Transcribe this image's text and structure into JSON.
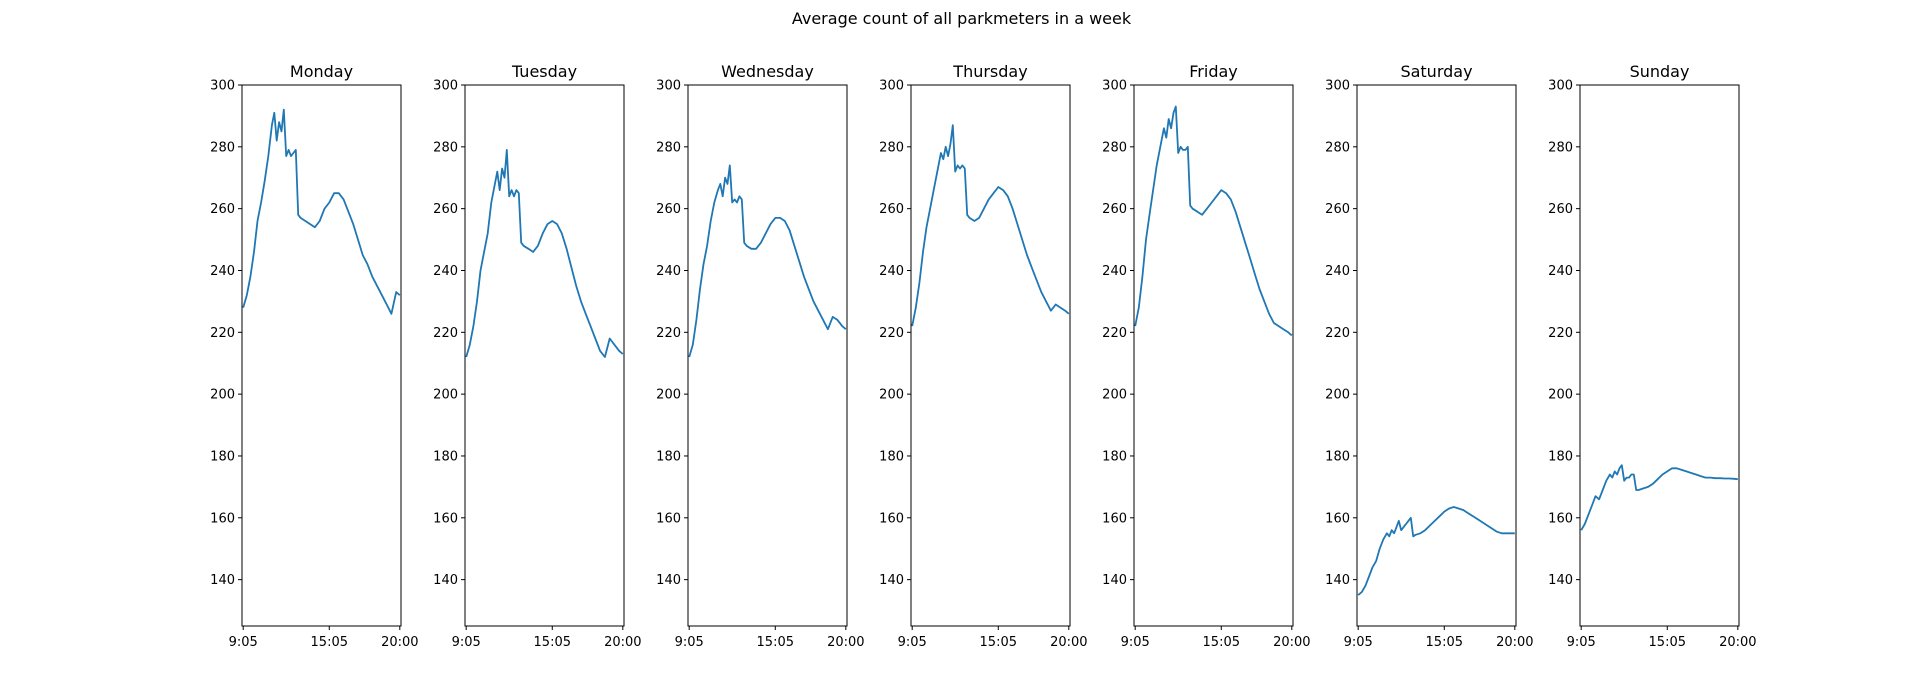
{
  "figure": {
    "title": "Average count of all parkmeters in a week"
  },
  "colors": {
    "line": "#1f77b4",
    "axis": "#000000",
    "background": "#ffffff"
  },
  "chart_data": {
    "type": "line",
    "layout": "7 subplots in a row, shared scale",
    "title": "Average count of all parkmeters in a week",
    "ylim": [
      125,
      300
    ],
    "yticks": [
      140,
      160,
      180,
      200,
      220,
      240,
      260,
      280,
      300
    ],
    "xlim": [
      "9:00",
      "20:05"
    ],
    "xtick_labels": [
      "9:05",
      "15:05",
      "20:00"
    ],
    "grid": false,
    "panels": [
      {
        "title": "Monday",
        "x": [
          "9:05",
          "9:20",
          "9:35",
          "9:50",
          "10:05",
          "10:20",
          "10:35",
          "10:50",
          "11:05",
          "11:15",
          "11:25",
          "11:35",
          "11:45",
          "11:55",
          "12:05",
          "12:15",
          "12:25",
          "12:35",
          "12:45",
          "12:55",
          "13:05",
          "13:25",
          "13:45",
          "14:05",
          "14:25",
          "14:45",
          "15:05",
          "15:25",
          "15:45",
          "16:05",
          "16:25",
          "16:45",
          "17:05",
          "17:25",
          "17:45",
          "18:05",
          "18:25",
          "18:45",
          "19:05",
          "19:25",
          "19:45",
          "20:00"
        ],
        "y": [
          228,
          232,
          238,
          246,
          256,
          262,
          269,
          277,
          287,
          291,
          282,
          288,
          285,
          292,
          277,
          279,
          277,
          278,
          279,
          258,
          257,
          256,
          255,
          254,
          256,
          260,
          262,
          265,
          265,
          263,
          259,
          255,
          250,
          245,
          242,
          238,
          235,
          232,
          229,
          226,
          233,
          232
        ]
      },
      {
        "title": "Tuesday",
        "x": [
          "9:05",
          "9:20",
          "9:35",
          "9:50",
          "10:05",
          "10:20",
          "10:35",
          "10:50",
          "11:05",
          "11:15",
          "11:25",
          "11:35",
          "11:45",
          "11:55",
          "12:05",
          "12:15",
          "12:25",
          "12:35",
          "12:45",
          "12:55",
          "13:05",
          "13:25",
          "13:45",
          "14:05",
          "14:25",
          "14:45",
          "15:05",
          "15:25",
          "15:45",
          "16:05",
          "16:25",
          "16:45",
          "17:05",
          "17:25",
          "17:45",
          "18:05",
          "18:25",
          "18:45",
          "19:05",
          "19:25",
          "19:45",
          "20:00"
        ],
        "y": [
          212,
          216,
          222,
          230,
          240,
          246,
          252,
          262,
          268,
          272,
          266,
          273,
          270,
          279,
          264,
          266,
          264,
          266,
          265,
          249,
          248,
          247,
          246,
          248,
          252,
          255,
          256,
          255,
          252,
          247,
          241,
          235,
          230,
          226,
          222,
          218,
          214,
          212,
          218,
          216,
          214,
          213
        ]
      },
      {
        "title": "Wednesday",
        "x": [
          "9:05",
          "9:20",
          "9:35",
          "9:50",
          "10:05",
          "10:20",
          "10:35",
          "10:50",
          "11:05",
          "11:15",
          "11:25",
          "11:35",
          "11:45",
          "11:55",
          "12:05",
          "12:15",
          "12:25",
          "12:35",
          "12:45",
          "12:55",
          "13:05",
          "13:25",
          "13:45",
          "14:05",
          "14:25",
          "14:45",
          "15:05",
          "15:25",
          "15:45",
          "16:05",
          "16:25",
          "16:45",
          "17:05",
          "17:25",
          "17:45",
          "18:05",
          "18:25",
          "18:45",
          "19:05",
          "19:25",
          "19:45",
          "20:00"
        ],
        "y": [
          212,
          216,
          224,
          234,
          242,
          248,
          256,
          262,
          266,
          268,
          264,
          270,
          268,
          274,
          262,
          263,
          262,
          264,
          263,
          249,
          248,
          247,
          247,
          249,
          252,
          255,
          257,
          257,
          256,
          253,
          248,
          243,
          238,
          234,
          230,
          227,
          224,
          221,
          225,
          224,
          222,
          221
        ]
      },
      {
        "title": "Thursday",
        "x": [
          "9:05",
          "9:20",
          "9:35",
          "9:50",
          "10:05",
          "10:20",
          "10:35",
          "10:50",
          "11:05",
          "11:15",
          "11:25",
          "11:35",
          "11:45",
          "11:55",
          "12:05",
          "12:15",
          "12:25",
          "12:35",
          "12:45",
          "12:55",
          "13:05",
          "13:25",
          "13:45",
          "14:05",
          "14:25",
          "14:45",
          "15:05",
          "15:25",
          "15:45",
          "16:05",
          "16:25",
          "16:45",
          "17:05",
          "17:25",
          "17:45",
          "18:05",
          "18:25",
          "18:45",
          "19:05",
          "19:25",
          "19:45",
          "20:00"
        ],
        "y": [
          222,
          228,
          236,
          246,
          254,
          260,
          266,
          272,
          278,
          276,
          280,
          277,
          281,
          287,
          272,
          274,
          273,
          274,
          273,
          258,
          257,
          256,
          257,
          260,
          263,
          265,
          267,
          266,
          264,
          260,
          255,
          250,
          245,
          241,
          237,
          233,
          230,
          227,
          229,
          228,
          227,
          226
        ]
      },
      {
        "title": "Friday",
        "x": [
          "9:05",
          "9:20",
          "9:35",
          "9:50",
          "10:05",
          "10:20",
          "10:35",
          "10:50",
          "11:05",
          "11:15",
          "11:25",
          "11:35",
          "11:45",
          "11:55",
          "12:05",
          "12:15",
          "12:25",
          "12:35",
          "12:45",
          "12:55",
          "13:05",
          "13:25",
          "13:45",
          "14:05",
          "14:25",
          "14:45",
          "15:05",
          "15:25",
          "15:45",
          "16:05",
          "16:25",
          "16:45",
          "17:05",
          "17:25",
          "17:45",
          "18:05",
          "18:25",
          "18:45",
          "19:05",
          "19:25",
          "19:45",
          "20:00"
        ],
        "y": [
          222,
          228,
          238,
          250,
          258,
          266,
          274,
          280,
          286,
          283,
          289,
          286,
          291,
          293,
          278,
          280,
          279,
          279,
          280,
          261,
          260,
          259,
          258,
          260,
          262,
          264,
          266,
          265,
          263,
          259,
          254,
          249,
          244,
          239,
          234,
          230,
          226,
          223,
          222,
          221,
          220,
          219
        ]
      },
      {
        "title": "Saturday",
        "x": [
          "9:05",
          "9:20",
          "9:35",
          "9:50",
          "10:05",
          "10:20",
          "10:35",
          "10:50",
          "11:05",
          "11:15",
          "11:25",
          "11:35",
          "11:45",
          "11:55",
          "12:05",
          "12:15",
          "12:25",
          "12:35",
          "12:45",
          "12:55",
          "13:05",
          "13:25",
          "13:45",
          "14:05",
          "14:25",
          "14:45",
          "15:05",
          "15:25",
          "15:45",
          "16:05",
          "16:25",
          "16:45",
          "17:05",
          "17:25",
          "17:45",
          "18:05",
          "18:25",
          "18:45",
          "19:05",
          "19:25",
          "19:45",
          "20:00"
        ],
        "y": [
          135,
          136,
          138,
          141,
          144,
          146,
          150,
          153,
          155,
          154,
          156,
          155,
          157,
          159,
          156,
          157,
          158,
          159,
          160,
          154,
          154.5,
          155,
          156,
          157.5,
          159,
          160.5,
          162,
          163,
          163.5,
          163,
          162.5,
          161.5,
          160.5,
          159.5,
          158.5,
          157.5,
          156.5,
          155.5,
          155,
          155,
          155,
          155
        ]
      },
      {
        "title": "Sunday",
        "x": [
          "9:05",
          "9:20",
          "9:35",
          "9:50",
          "10:05",
          "10:20",
          "10:35",
          "10:50",
          "11:05",
          "11:15",
          "11:25",
          "11:35",
          "11:45",
          "11:55",
          "12:05",
          "12:15",
          "12:25",
          "12:35",
          "12:45",
          "12:55",
          "13:05",
          "13:25",
          "13:45",
          "14:05",
          "14:25",
          "14:45",
          "15:05",
          "15:25",
          "15:45",
          "16:05",
          "16:25",
          "16:45",
          "17:05",
          "17:25",
          "17:45",
          "18:05",
          "18:25",
          "18:45",
          "19:05",
          "19:25",
          "19:45",
          "20:00"
        ],
        "y": [
          156,
          158,
          161,
          164,
          167,
          166,
          169,
          172,
          174,
          173,
          175,
          174,
          176,
          177,
          172,
          173,
          173,
          174,
          174,
          169,
          169,
          169.5,
          170,
          171,
          172.5,
          174,
          175,
          176,
          176,
          175.5,
          175,
          174.5,
          174,
          173.5,
          173,
          173,
          172.8,
          172.8,
          172.7,
          172.7,
          172.6,
          172.5
        ]
      }
    ]
  }
}
